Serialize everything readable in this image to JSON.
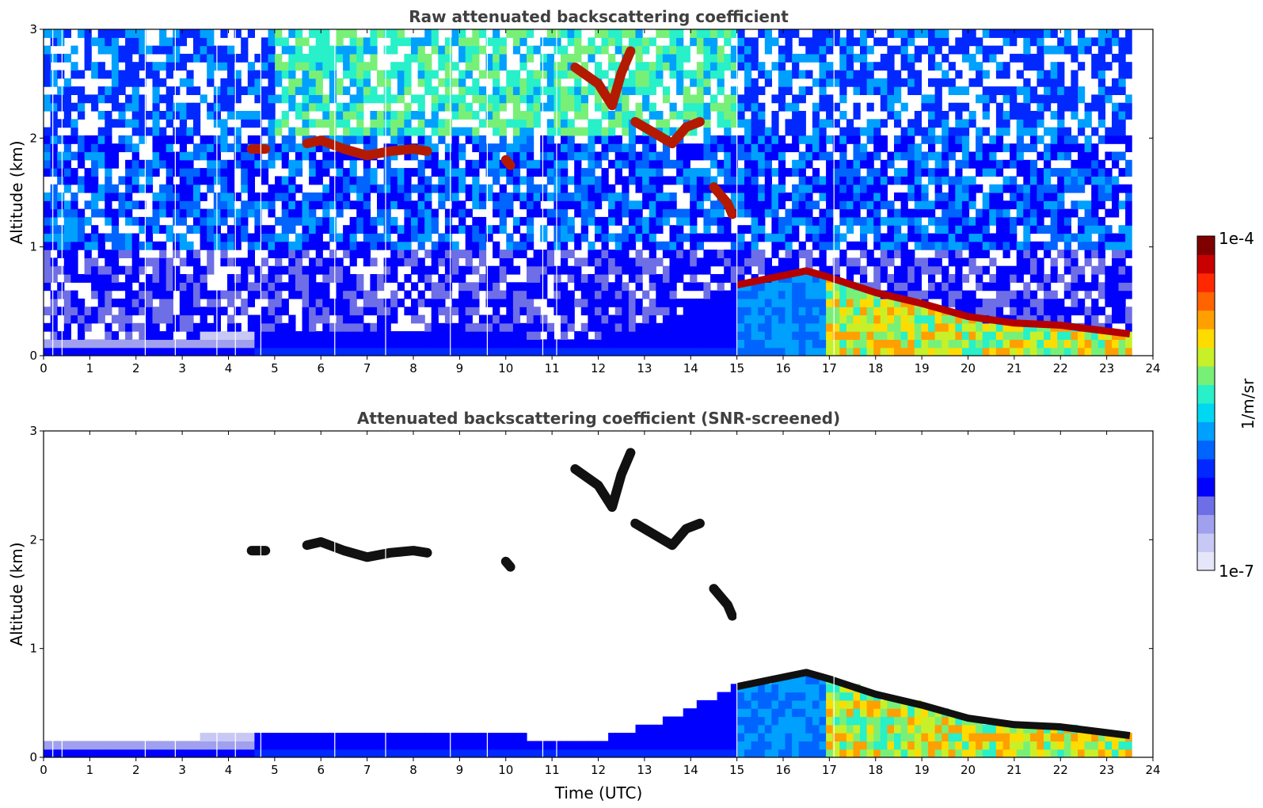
{
  "chart_data": [
    {
      "type": "heatmap",
      "title": "Raw attenuated backscattering coefficient",
      "xlabel": "",
      "ylabel": "Altitude (km)",
      "xlim": [
        0,
        24
      ],
      "ylim": [
        0,
        3
      ],
      "xticks": [
        "0",
        "1",
        "2",
        "3",
        "4",
        "5",
        "6",
        "7",
        "8",
        "9",
        "10",
        "11",
        "12",
        "13",
        "14",
        "15",
        "16",
        "17",
        "18",
        "19",
        "20",
        "21",
        "22",
        "23",
        "24"
      ],
      "yticks": [
        "0",
        "1",
        "2",
        "3"
      ],
      "data_end_hour": 23.55,
      "features": [
        {
          "kind": "boundary_layer",
          "points": [
            [
              0,
              0.12
            ],
            [
              4,
              0.2
            ],
            [
              8,
              0.25
            ],
            [
              12,
              0.15
            ],
            [
              13.5,
              0.35
            ],
            [
              15,
              0.65
            ],
            [
              16.5,
              0.78
            ],
            [
              17,
              0.72
            ],
            [
              18,
              0.58
            ],
            [
              19,
              0.48
            ],
            [
              20,
              0.36
            ],
            [
              21,
              0.3
            ],
            [
              22,
              0.28
            ],
            [
              23.5,
              0.2
            ]
          ]
        },
        {
          "kind": "cloud",
          "points": [
            [
              4.5,
              1.9
            ],
            [
              4.8,
              1.9
            ]
          ]
        },
        {
          "kind": "cloud",
          "points": [
            [
              5.7,
              1.95
            ],
            [
              6.0,
              1.98
            ],
            [
              6.5,
              1.9
            ],
            [
              7.0,
              1.84
            ],
            [
              7.5,
              1.88
            ],
            [
              8.0,
              1.9
            ],
            [
              8.3,
              1.88
            ]
          ]
        },
        {
          "kind": "cloud",
          "points": [
            [
              11.5,
              2.65
            ],
            [
              12.0,
              2.5
            ],
            [
              12.3,
              2.3
            ],
            [
              12.5,
              2.6
            ],
            [
              12.7,
              2.8
            ]
          ]
        },
        {
          "kind": "cloud",
          "points": [
            [
              12.8,
              2.15
            ],
            [
              13.2,
              2.05
            ],
            [
              13.6,
              1.95
            ],
            [
              13.9,
              2.1
            ],
            [
              14.2,
              2.15
            ]
          ]
        },
        {
          "kind": "cloud",
          "points": [
            [
              14.5,
              1.55
            ],
            [
              14.8,
              1.4
            ],
            [
              14.9,
              1.3
            ]
          ]
        },
        {
          "kind": "cloud",
          "points": [
            [
              10.0,
              1.8
            ],
            [
              10.1,
              1.75
            ]
          ]
        }
      ]
    },
    {
      "type": "heatmap",
      "title": "Attenuated backscattering coefficient (SNR-screened)",
      "xlabel": "Time (UTC)",
      "ylabel": "Altitude (km)",
      "xlim": [
        0,
        24
      ],
      "ylim": [
        0,
        3
      ],
      "xticks": [
        "0",
        "1",
        "2",
        "3",
        "4",
        "5",
        "6",
        "7",
        "8",
        "9",
        "10",
        "11",
        "12",
        "13",
        "14",
        "15",
        "16",
        "17",
        "18",
        "19",
        "20",
        "21",
        "22",
        "23",
        "24"
      ],
      "yticks": [
        "0",
        "1",
        "2",
        "3"
      ],
      "data_end_hour": 23.55
    }
  ],
  "colorbar": {
    "label": "1/m/sr",
    "max_label": "1e-4",
    "min_label": "1e-7",
    "colors": [
      "#e6e6fa",
      "#c8c8f5",
      "#a0a0ee",
      "#6e6ee6",
      "#0000ff",
      "#0028ff",
      "#0064ff",
      "#00a0ff",
      "#00d7f0",
      "#28f0c8",
      "#78f078",
      "#c8f028",
      "#ffdc00",
      "#ffa000",
      "#ff6400",
      "#ff2800",
      "#c80000",
      "#800000"
    ]
  }
}
